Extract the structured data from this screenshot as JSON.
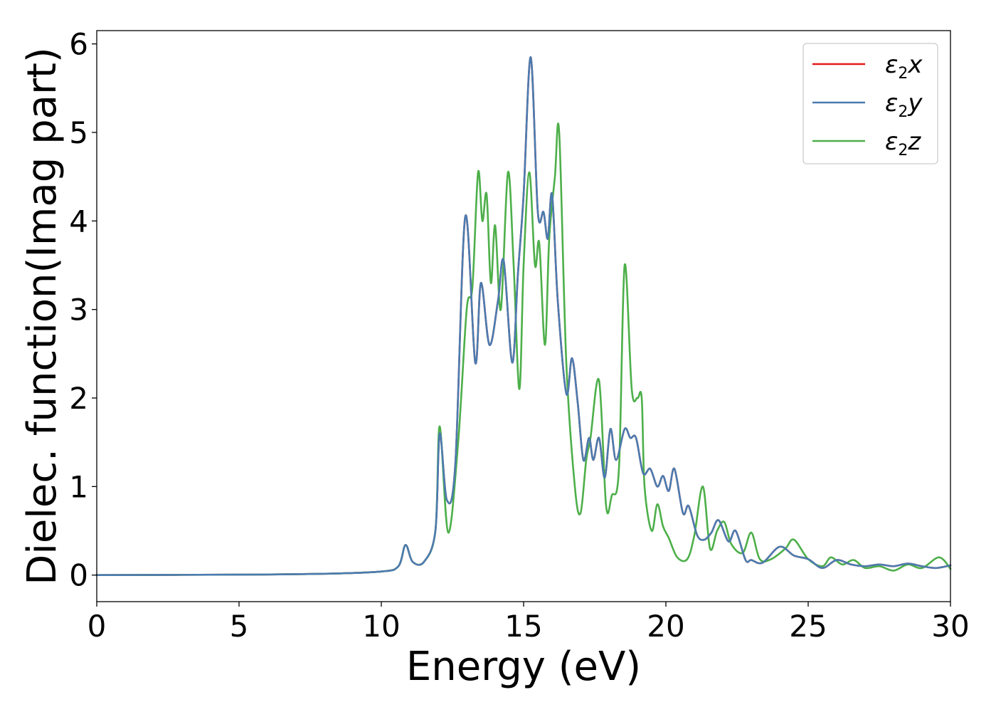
{
  "chart_data": {
    "type": "line",
    "xlabel": "Energy (eV)",
    "ylabel": "Dielec. function(Imag part)",
    "xlim": [
      0,
      30
    ],
    "ylim": [
      -0.3,
      6.15
    ],
    "xticks": [
      "0",
      "5",
      "10",
      "15",
      "20",
      "25",
      "30"
    ],
    "yticks": [
      "0",
      "1",
      "2",
      "3",
      "4",
      "5",
      "6"
    ],
    "grid": false,
    "legend_position": "top-right",
    "series": [
      {
        "name": "ε2x",
        "legend_main": "ε",
        "legend_sub": "2",
        "legend_var": "x",
        "color": "#e41a1c",
        "x": [
          0,
          5,
          8,
          10,
          10.6,
          10.85,
          11.1,
          11.5,
          11.9,
          12.05,
          12.3,
          12.6,
          12.95,
          13.3,
          13.5,
          13.8,
          14.1,
          14.3,
          14.6,
          14.8,
          15.0,
          15.25,
          15.5,
          15.7,
          15.85,
          16.0,
          16.2,
          16.5,
          16.7,
          16.9,
          17.1,
          17.3,
          17.45,
          17.65,
          17.85,
          18.05,
          18.25,
          18.55,
          18.75,
          18.95,
          19.2,
          19.45,
          19.7,
          19.9,
          20.1,
          20.3,
          20.6,
          20.8,
          21.1,
          21.35,
          21.6,
          21.85,
          22.2,
          22.45,
          22.8,
          23.0,
          23.4,
          24.0,
          24.5,
          25.0,
          25.5,
          26.0,
          26.5,
          27.0,
          27.5,
          28.0,
          28.5,
          29.0,
          29.5,
          30.0
        ],
        "values": [
          0,
          0.005,
          0.015,
          0.04,
          0.1,
          0.34,
          0.15,
          0.15,
          0.5,
          1.6,
          0.85,
          1.25,
          4.05,
          2.4,
          3.3,
          2.6,
          3.1,
          3.55,
          2.4,
          3.4,
          4.3,
          5.85,
          4.1,
          4.1,
          3.8,
          4.3,
          3.1,
          2.05,
          2.45,
          1.95,
          1.3,
          1.55,
          1.3,
          1.55,
          1.1,
          1.65,
          1.3,
          1.65,
          1.55,
          1.55,
          1.15,
          1.2,
          1.0,
          1.12,
          0.95,
          1.2,
          0.7,
          0.78,
          0.45,
          0.4,
          0.48,
          0.62,
          0.38,
          0.5,
          0.17,
          0.17,
          0.14,
          0.32,
          0.22,
          0.18,
          0.08,
          0.17,
          0.12,
          0.1,
          0.12,
          0.1,
          0.13,
          0.1,
          0.08,
          0.11
        ]
      },
      {
        "name": "ε2y",
        "legend_main": "ε",
        "legend_sub": "2",
        "legend_var": "y",
        "color": "#4a7cb0",
        "x": [
          0,
          5,
          8,
          10,
          10.6,
          10.85,
          11.1,
          11.5,
          11.9,
          12.05,
          12.3,
          12.6,
          12.95,
          13.3,
          13.5,
          13.8,
          14.1,
          14.3,
          14.6,
          14.8,
          15.0,
          15.25,
          15.5,
          15.7,
          15.85,
          16.0,
          16.2,
          16.5,
          16.7,
          16.9,
          17.1,
          17.3,
          17.45,
          17.65,
          17.85,
          18.05,
          18.25,
          18.55,
          18.75,
          18.95,
          19.2,
          19.45,
          19.7,
          19.9,
          20.1,
          20.3,
          20.6,
          20.8,
          21.1,
          21.35,
          21.6,
          21.85,
          22.2,
          22.45,
          22.8,
          23.0,
          23.4,
          24.0,
          24.5,
          25.0,
          25.5,
          26.0,
          26.5,
          27.0,
          27.5,
          28.0,
          28.5,
          29.0,
          29.5,
          30.0
        ],
        "values": [
          0,
          0.005,
          0.015,
          0.04,
          0.1,
          0.34,
          0.15,
          0.15,
          0.5,
          1.6,
          0.85,
          1.25,
          4.05,
          2.4,
          3.3,
          2.6,
          3.1,
          3.55,
          2.4,
          3.4,
          4.3,
          5.85,
          4.1,
          4.1,
          3.8,
          4.3,
          3.1,
          2.05,
          2.45,
          1.95,
          1.3,
          1.55,
          1.3,
          1.55,
          1.1,
          1.65,
          1.3,
          1.65,
          1.55,
          1.55,
          1.15,
          1.2,
          1.0,
          1.12,
          0.95,
          1.2,
          0.7,
          0.78,
          0.45,
          0.4,
          0.48,
          0.62,
          0.38,
          0.5,
          0.17,
          0.17,
          0.14,
          0.32,
          0.22,
          0.18,
          0.08,
          0.17,
          0.12,
          0.1,
          0.12,
          0.1,
          0.13,
          0.1,
          0.08,
          0.11
        ]
      },
      {
        "name": "ε2z",
        "legend_main": "ε",
        "legend_sub": "2",
        "legend_var": "z",
        "color": "#4daf4a",
        "x": [
          0,
          5,
          8,
          10,
          10.6,
          10.85,
          11.1,
          11.5,
          11.9,
          12.05,
          12.35,
          12.7,
          13.0,
          13.2,
          13.4,
          13.55,
          13.7,
          13.85,
          14.0,
          14.2,
          14.45,
          14.65,
          14.85,
          15.0,
          15.2,
          15.4,
          15.55,
          15.75,
          15.9,
          16.1,
          16.25,
          16.5,
          16.8,
          17.0,
          17.2,
          17.35,
          17.65,
          17.9,
          18.1,
          18.35,
          18.55,
          18.8,
          19.0,
          19.15,
          19.25,
          19.5,
          19.7,
          19.9,
          20.1,
          20.4,
          20.75,
          21.0,
          21.3,
          21.55,
          21.8,
          22.05,
          22.3,
          22.7,
          23.0,
          23.3,
          23.7,
          24.2,
          24.5,
          25.0,
          25.5,
          25.8,
          26.2,
          26.6,
          27.0,
          27.5,
          28.0,
          28.5,
          29.0,
          29.6,
          30.0
        ],
        "values": [
          0,
          0.005,
          0.015,
          0.04,
          0.1,
          0.34,
          0.15,
          0.15,
          0.5,
          1.68,
          0.48,
          1.5,
          3.0,
          3.25,
          4.55,
          4.0,
          4.3,
          3.3,
          3.95,
          3.0,
          4.55,
          3.5,
          2.1,
          3.5,
          4.55,
          3.5,
          3.75,
          2.6,
          3.8,
          4.5,
          5.0,
          2.4,
          1.0,
          0.7,
          1.3,
          1.55,
          2.2,
          0.78,
          0.9,
          1.2,
          3.5,
          2.1,
          2.0,
          2.0,
          1.0,
          0.5,
          0.8,
          0.55,
          0.42,
          0.2,
          0.18,
          0.45,
          1.0,
          0.3,
          0.5,
          0.6,
          0.35,
          0.25,
          0.48,
          0.18,
          0.18,
          0.3,
          0.4,
          0.18,
          0.1,
          0.2,
          0.12,
          0.17,
          0.08,
          0.1,
          0.05,
          0.12,
          0.08,
          0.2,
          0.07
        ]
      }
    ]
  }
}
